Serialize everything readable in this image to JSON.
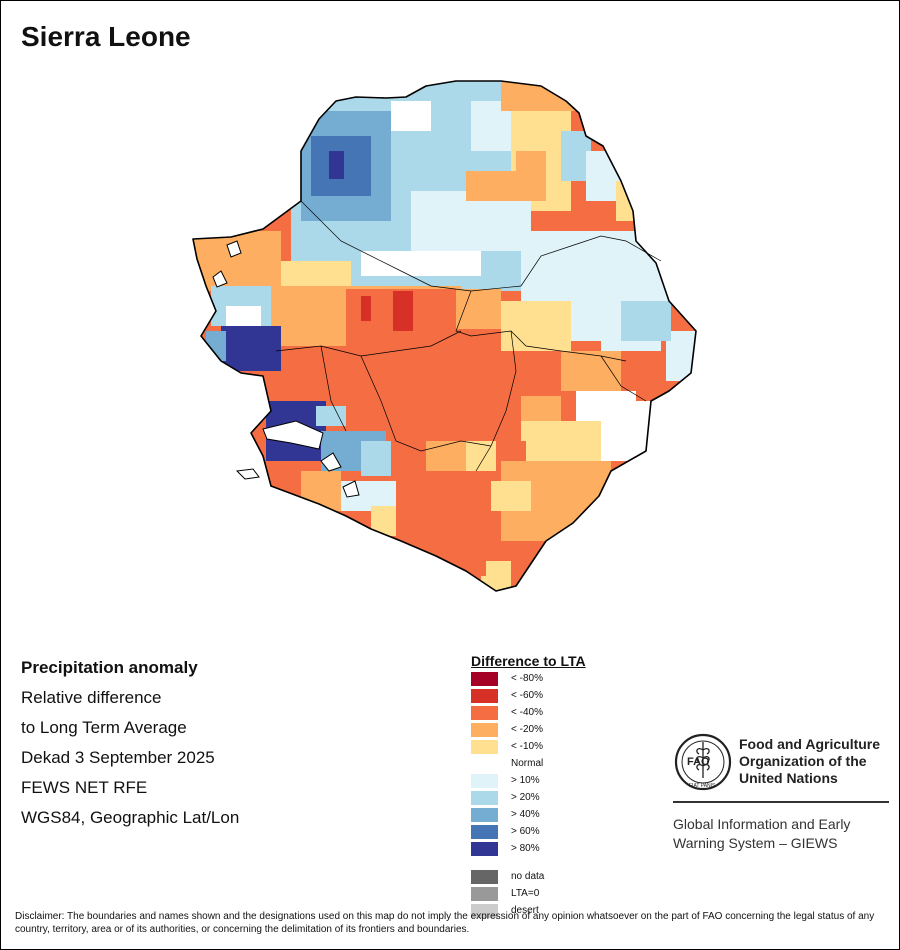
{
  "map": {
    "title": "Sierra Leone",
    "info_lines": [
      "Precipitation anomaly",
      "Relative difference",
      "to Long Term Average",
      "Dekad 3 September 2025",
      "FEWS NET RFE",
      "WGS84, Geographic Lat/Lon"
    ]
  },
  "legend": {
    "title": "Difference to LTA",
    "items": [
      {
        "label": "< -80%",
        "color": "#a50026"
      },
      {
        "label": "< -60%",
        "color": "#d73027"
      },
      {
        "label": "< -40%",
        "color": "#f46d43"
      },
      {
        "label": "< -20%",
        "color": "#fdae61"
      },
      {
        "label": "< -10%",
        "color": "#fee090"
      },
      {
        "label": "Normal",
        "color": "#ffffff"
      },
      {
        "label": "> 10%",
        "color": "#e0f3f8"
      },
      {
        "label": "> 20%",
        "color": "#abd9e9"
      },
      {
        "label": "> 40%",
        "color": "#74add1"
      },
      {
        "label": "> 60%",
        "color": "#4575b4"
      },
      {
        "label": "> 80%",
        "color": "#313695"
      }
    ],
    "extra_items": [
      {
        "label": "no data",
        "color": "#666666"
      },
      {
        "label": "LTA=0",
        "color": "#999999"
      },
      {
        "label": "desert",
        "color": "#cccccc"
      }
    ]
  },
  "fao": {
    "logo_letters": "FAO",
    "logo_motto": "FIAT PANIS",
    "name_lines": [
      "Food and Agriculture",
      "Organization of the",
      "United Nations"
    ],
    "giews_lines": [
      "Global Information and Early",
      "Warning System – GIEWS"
    ]
  },
  "disclaimer": "Disclaimer: The boundaries and names shown and the designations used on this map do not imply the expression of any opinion whatsoever on the part of FAO concerning the legal status of any country, territory, area or of its authorities, or concerning the delimitation of its frontiers and boundaries."
}
